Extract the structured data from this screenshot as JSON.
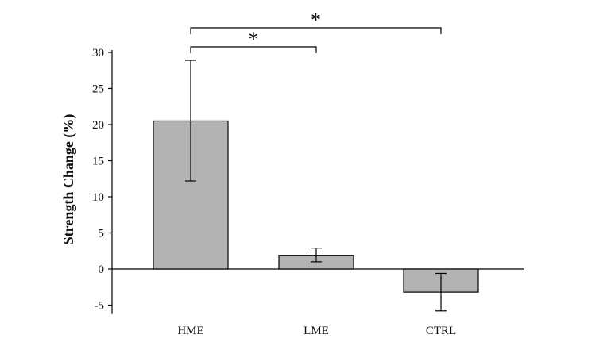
{
  "chart_data": {
    "type": "bar",
    "title": "",
    "xlabel": "",
    "ylabel": "Strength Change (%)",
    "ylim": [
      -6,
      30
    ],
    "yticks": [
      30,
      25,
      20,
      15,
      10,
      5,
      0,
      -5
    ],
    "grid": false,
    "categories": [
      "HME",
      "LME",
      "CTRL"
    ],
    "values": [
      20.5,
      1.9,
      -3.2
    ],
    "error_low": [
      12.2,
      1.0,
      -5.8
    ],
    "error_high": [
      28.9,
      2.9,
      -0.6
    ],
    "bar_color": "#b3b3b3",
    "significance": [
      {
        "from": "HME",
        "to": "LME",
        "label": "*"
      },
      {
        "from": "HME",
        "to": "CTRL",
        "label": "*"
      }
    ]
  }
}
